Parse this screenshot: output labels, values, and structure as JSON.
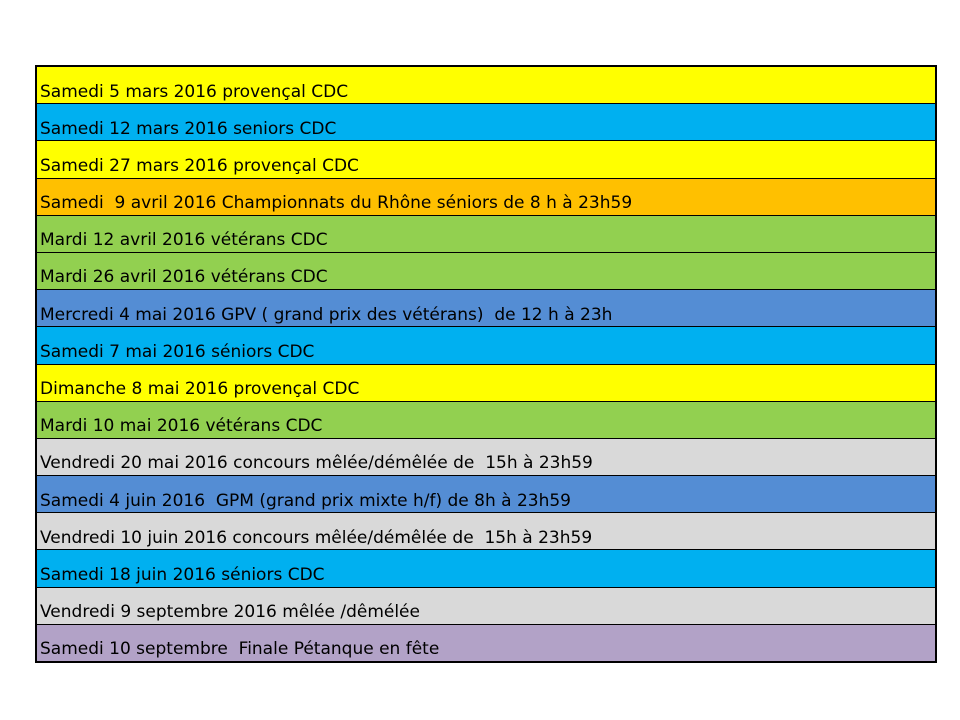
{
  "page": {
    "background_color": "#FFFFFF"
  },
  "table": {
    "border_color": "#000000",
    "text_color": "#000000",
    "rows": [
      {
        "text": "Samedi 5 mars 2016 provençal CDC",
        "color": "#FFFF00"
      },
      {
        "text": "Samedi 12 mars 2016 seniors CDC",
        "color": "#00B0F0"
      },
      {
        "text": "Samedi 27 mars 2016 provençal CDC",
        "color": "#FFFF00"
      },
      {
        "text": "Samedi  9 avril 2016 Championnats du Rhône séniors de 8 h à 23h59",
        "color": "#FFC000"
      },
      {
        "text": "Mardi 12 avril 2016 vétérans CDC",
        "color": "#92D050"
      },
      {
        "text": "Mardi 26 avril 2016 vétérans CDC",
        "color": "#92D050"
      },
      {
        "text": "Mercredi 4 mai 2016 GPV ( grand prix des vétérans)  de 12 h à 23h",
        "color": "#548DD4"
      },
      {
        "text": "Samedi 7 mai 2016 séniors CDC",
        "color": "#00B0F0"
      },
      {
        "text": "Dimanche 8 mai 2016 provençal CDC",
        "color": "#FFFF00"
      },
      {
        "text": "Mardi 10 mai 2016 vétérans CDC",
        "color": "#92D050"
      },
      {
        "text": "Vendredi 20 mai 2016 concours mêlée/démêlée de  15h à 23h59",
        "color": "#D9D9D9"
      },
      {
        "text": "Samedi 4 juin 2016  GPM (grand prix mixte h/f) de 8h à 23h59",
        "color": "#548DD4"
      },
      {
        "text": "Vendredi 10 juin 2016 concours mêlée/démêlée de  15h à 23h59",
        "color": "#D9D9D9"
      },
      {
        "text": "Samedi 18 juin 2016 séniors CDC",
        "color": "#00B0F0"
      },
      {
        "text": "Vendredi 9 septembre 2016 mêlée /dêmélée",
        "color": "#D9D9D9"
      },
      {
        "text": "Samedi 10 septembre  Finale Pétanque en fête",
        "color": "#B2A2C7"
      }
    ]
  }
}
